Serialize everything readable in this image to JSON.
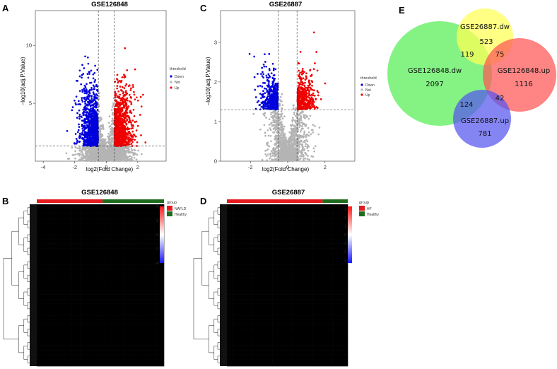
{
  "panels": {
    "A": "A",
    "B": "B",
    "C": "C",
    "D": "D",
    "E": "E"
  },
  "colors": {
    "down": "#0000dd",
    "not": "#b4b4b4",
    "up": "#ee0000",
    "nafld": "#e41a1c",
    "healthy": "#1e6b1e",
    "hf": "#e41a1c"
  },
  "chart_data": [
    {
      "id": "volcano_A",
      "type": "scatter",
      "title": "GSE126848",
      "xlabel": "log2(Fold Change)",
      "ylabel": "−log10(adj.P.Value)",
      "xlim": [
        -4.5,
        3.8
      ],
      "ylim": [
        0,
        13
      ],
      "xticks": [
        "-4",
        "-2",
        "0",
        "2"
      ],
      "xtick_values": [
        -4,
        -2,
        0,
        2
      ],
      "yticks": [
        "5",
        "10"
      ],
      "ytick_values": [
        5,
        10
      ],
      "fc_cutoff": [
        -0.5,
        0.5
      ],
      "p_cutoff": 1.3,
      "legend": {
        "title": "threshold",
        "items": [
          "Down",
          "Not",
          "Up"
        ]
      },
      "n_points_per_group": {
        "down": 900,
        "not": 1400,
        "up": 900
      }
    },
    {
      "id": "volcano_C",
      "type": "scatter",
      "title": "GSE26887",
      "xlabel": "log2(Fold Change)",
      "ylabel": "−log10(adj.P.Value)",
      "xlim": [
        -3.6,
        3.6
      ],
      "ylim": [
        0,
        3.8
      ],
      "xticks": [
        "-2",
        "0",
        "2"
      ],
      "xtick_values": [
        -2,
        0,
        2
      ],
      "yticks": [
        "0",
        "1",
        "2",
        "3"
      ],
      "ytick_values": [
        0,
        1,
        2,
        3
      ],
      "fc_cutoff": [
        -0.5,
        0.5
      ],
      "p_cutoff": 1.3,
      "legend": {
        "title": "threshold",
        "items": [
          "Down",
          "Not",
          "Up"
        ]
      },
      "n_points_per_group": {
        "down": 400,
        "not": 1300,
        "up": 400
      }
    },
    {
      "id": "heatmap_B",
      "type": "heatmap",
      "title": "GSE126848",
      "groups": [
        {
          "name": "NAFLD",
          "samples": 15
        },
        {
          "name": "Healthy",
          "samples": 14
        }
      ],
      "legend_title": "group",
      "scale": [
        "4",
        "2",
        "0",
        "-2",
        "-4"
      ],
      "scale_values": [
        4,
        2,
        0,
        -2,
        -4
      ]
    },
    {
      "id": "heatmap_D",
      "type": "heatmap",
      "title": "GSE26887",
      "groups": [
        {
          "name": "HF",
          "samples": 19
        },
        {
          "name": "Healthy",
          "samples": 5
        }
      ],
      "legend_title": "group",
      "scale": [
        "3",
        "2",
        "1",
        "0",
        "-1",
        "-2",
        "-3"
      ],
      "scale_values": [
        3,
        2,
        1,
        0,
        -1,
        -2,
        -3
      ]
    },
    {
      "id": "venn_E",
      "type": "venn",
      "sets": [
        {
          "name": "GSE26887.dw",
          "color": "#ffff55"
        },
        {
          "name": "GSE126848.dw",
          "color": "#55ee55"
        },
        {
          "name": "GSE126848.up",
          "color": "#ff5555"
        },
        {
          "name": "GSE26887.up",
          "color": "#5555ee"
        }
      ],
      "regions": [
        {
          "sets": [
            "GSE26887.dw"
          ],
          "value": 523
        },
        {
          "sets": [
            "GSE126848.dw"
          ],
          "value": 2097
        },
        {
          "sets": [
            "GSE126848.up"
          ],
          "value": 1116
        },
        {
          "sets": [
            "GSE26887.up"
          ],
          "value": 781
        },
        {
          "sets": [
            "GSE26887.dw",
            "GSE126848.dw"
          ],
          "value": 119
        },
        {
          "sets": [
            "GSE26887.dw",
            "GSE126848.up"
          ],
          "value": 75
        },
        {
          "sets": [
            "GSE126848.dw",
            "GSE26887.up"
          ],
          "value": 124
        },
        {
          "sets": [
            "GSE126848.up",
            "GSE26887.up"
          ],
          "value": 42
        }
      ]
    }
  ]
}
